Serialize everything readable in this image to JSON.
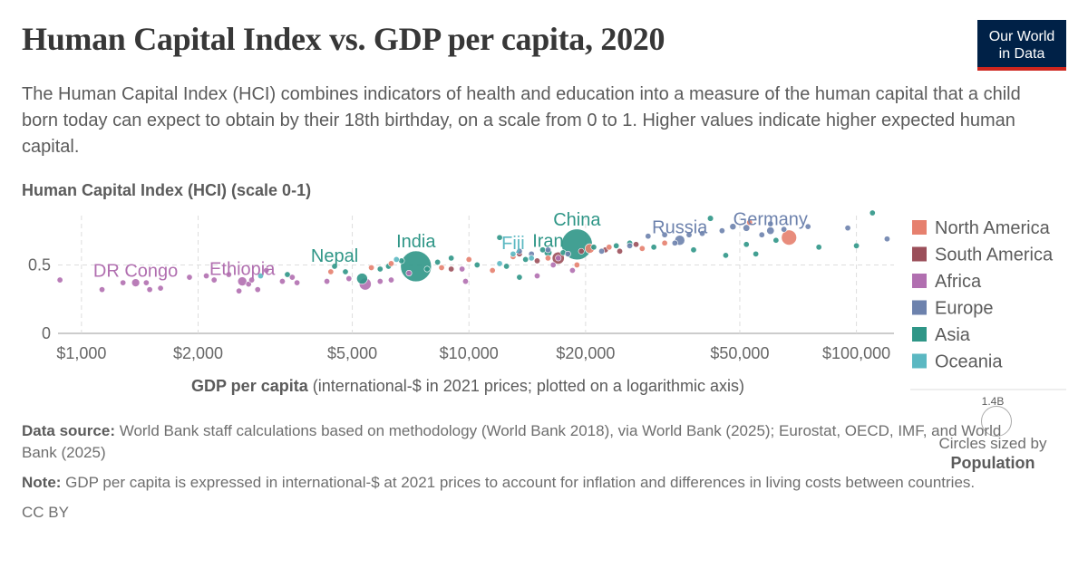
{
  "title": "Human Capital Index vs. GDP per capita, 2020",
  "subtitle": "The Human Capital Index (HCI) combines indicators of health and education into a measure of the human capital that a child born today can expect to obtain by their 18th birthday, on a scale from 0 to 1. Higher values indicate higher expected human capital.",
  "logo": {
    "line1": "Our World",
    "line2": "in Data"
  },
  "chart_data": {
    "type": "scatter",
    "title": "Human Capital Index vs. GDP per capita, 2020",
    "ylabel": "Human Capital Index (HCI) (scale 0-1)",
    "xlabel_bold": "GDP per capita",
    "xlabel_rest": " (international-$ in 2021 prices; plotted on a logarithmic axis)",
    "x_scale": "log",
    "xlim": [
      870,
      125000
    ],
    "ylim": [
      0,
      0.9
    ],
    "x_ticks": [
      {
        "v": 1000,
        "label": "$1,000"
      },
      {
        "v": 2000,
        "label": "$2,000"
      },
      {
        "v": 5000,
        "label": "$5,000"
      },
      {
        "v": 10000,
        "label": "$10,000"
      },
      {
        "v": 20000,
        "label": "$20,000"
      },
      {
        "v": 50000,
        "label": "$50,000"
      },
      {
        "v": 100000,
        "label": "$100,000"
      }
    ],
    "y_ticks": [
      {
        "v": 0,
        "label": "0"
      },
      {
        "v": 0.5,
        "label": "0.5"
      }
    ],
    "grid": true,
    "legend_position": "right",
    "size_legend": {
      "value": "1.4B",
      "caption": "Circles sized by",
      "variable": "Population"
    },
    "regions": [
      {
        "name": "North America",
        "color": "#e6806e"
      },
      {
        "name": "South America",
        "color": "#9b4f5a"
      },
      {
        "name": "Africa",
        "color": "#b16fb0"
      },
      {
        "name": "Europe",
        "color": "#6d82ad"
      },
      {
        "name": "Asia",
        "color": "#2f9687"
      },
      {
        "name": "Oceania",
        "color": "#5bb8c2"
      }
    ],
    "labeled_points": [
      {
        "label": "DR Congo",
        "region": "Africa",
        "x": 1380,
        "y": 0.37,
        "pop": 92
      },
      {
        "label": "Ethiopia",
        "region": "Africa",
        "x": 2600,
        "y": 0.38,
        "pop": 118
      },
      {
        "label": "Nepal",
        "region": "Asia",
        "x": 4500,
        "y": 0.49,
        "pop": 30
      },
      {
        "label": "India",
        "region": "Asia",
        "x": 7300,
        "y": 0.49,
        "pop": 1390
      },
      {
        "label": "Fiji",
        "region": "Oceania",
        "x": 13000,
        "y": 0.58,
        "pop": 1
      },
      {
        "label": "Iran",
        "region": "Asia",
        "x": 16000,
        "y": 0.59,
        "pop": 87
      },
      {
        "label": "China",
        "region": "Asia",
        "x": 19000,
        "y": 0.65,
        "pop": 1410
      },
      {
        "label": "Russia",
        "region": "Europe",
        "x": 35000,
        "y": 0.68,
        "pop": 145
      },
      {
        "label": "Germany",
        "region": "Europe",
        "x": 60000,
        "y": 0.75,
        "pop": 83
      }
    ],
    "points": [
      {
        "region": "Africa",
        "x": 880,
        "y": 0.39,
        "pop": 20
      },
      {
        "region": "Africa",
        "x": 1130,
        "y": 0.32,
        "pop": 12
      },
      {
        "region": "Africa",
        "x": 1280,
        "y": 0.37,
        "pop": 20
      },
      {
        "region": "Africa",
        "x": 1500,
        "y": 0.32,
        "pop": 10
      },
      {
        "region": "Africa",
        "x": 1600,
        "y": 0.33,
        "pop": 12
      },
      {
        "region": "Africa",
        "x": 1470,
        "y": 0.37,
        "pop": 10
      },
      {
        "region": "Africa",
        "x": 1900,
        "y": 0.41,
        "pop": 8
      },
      {
        "region": "Africa",
        "x": 2100,
        "y": 0.42,
        "pop": 14
      },
      {
        "region": "Africa",
        "x": 2200,
        "y": 0.39,
        "pop": 20
      },
      {
        "region": "Africa",
        "x": 2400,
        "y": 0.43,
        "pop": 12
      },
      {
        "region": "Africa",
        "x": 2550,
        "y": 0.31,
        "pop": 10
      },
      {
        "region": "Africa",
        "x": 2700,
        "y": 0.36,
        "pop": 14
      },
      {
        "region": "Africa",
        "x": 2850,
        "y": 0.32,
        "pop": 10
      },
      {
        "region": "Africa",
        "x": 2750,
        "y": 0.39,
        "pop": 12
      },
      {
        "region": "Africa",
        "x": 3000,
        "y": 0.46,
        "pop": 10
      },
      {
        "region": "Africa",
        "x": 3300,
        "y": 0.38,
        "pop": 16
      },
      {
        "region": "Africa",
        "x": 3600,
        "y": 0.37,
        "pop": 14
      },
      {
        "region": "Africa",
        "x": 3500,
        "y": 0.41,
        "pop": 10
      },
      {
        "region": "Africa",
        "x": 4300,
        "y": 0.38,
        "pop": 14
      },
      {
        "region": "Africa",
        "x": 4900,
        "y": 0.4,
        "pop": 10
      },
      {
        "region": "Africa",
        "x": 5400,
        "y": 0.36,
        "pop": 206
      },
      {
        "region": "Africa",
        "x": 5900,
        "y": 0.38,
        "pop": 16
      },
      {
        "region": "Africa",
        "x": 6300,
        "y": 0.39,
        "pop": 14
      },
      {
        "region": "Africa",
        "x": 7000,
        "y": 0.44,
        "pop": 10
      },
      {
        "region": "Africa",
        "x": 9800,
        "y": 0.38,
        "pop": 12
      },
      {
        "region": "Africa",
        "x": 9600,
        "y": 0.47,
        "pop": 14
      },
      {
        "region": "Africa",
        "x": 15000,
        "y": 0.42,
        "pop": 8
      },
      {
        "region": "Africa",
        "x": 17000,
        "y": 0.55,
        "pop": 10
      },
      {
        "region": "Africa",
        "x": 16500,
        "y": 0.5,
        "pop": 20
      },
      {
        "region": "Africa",
        "x": 18500,
        "y": 0.46,
        "pop": 12
      },
      {
        "region": "Asia",
        "x": 3400,
        "y": 0.43,
        "pop": 10
      },
      {
        "region": "Asia",
        "x": 4800,
        "y": 0.45,
        "pop": 30
      },
      {
        "region": "Asia",
        "x": 5300,
        "y": 0.4,
        "pop": 170
      },
      {
        "region": "Asia",
        "x": 5900,
        "y": 0.47,
        "pop": 12
      },
      {
        "region": "Asia",
        "x": 6200,
        "y": 0.49,
        "pop": 16
      },
      {
        "region": "Asia",
        "x": 6700,
        "y": 0.53,
        "pop": 10
      },
      {
        "region": "Asia",
        "x": 7800,
        "y": 0.47,
        "pop": 20
      },
      {
        "region": "Asia",
        "x": 8300,
        "y": 0.52,
        "pop": 20
      },
      {
        "region": "Asia",
        "x": 9000,
        "y": 0.55,
        "pop": 16
      },
      {
        "region": "Asia",
        "x": 10500,
        "y": 0.5,
        "pop": 10
      },
      {
        "region": "Asia",
        "x": 12500,
        "y": 0.49,
        "pop": 40
      },
      {
        "region": "Asia",
        "x": 12000,
        "y": 0.7,
        "pop": 10
      },
      {
        "region": "Asia",
        "x": 13500,
        "y": 0.41,
        "pop": 10
      },
      {
        "region": "Asia",
        "x": 14000,
        "y": 0.54,
        "pop": 36
      },
      {
        "region": "Asia",
        "x": 15500,
        "y": 0.61,
        "pop": 20
      },
      {
        "region": "Asia",
        "x": 17500,
        "y": 0.59,
        "pop": 30
      },
      {
        "region": "Asia",
        "x": 21000,
        "y": 0.63,
        "pop": 26
      },
      {
        "region": "Asia",
        "x": 24000,
        "y": 0.64,
        "pop": 20
      },
      {
        "region": "Asia",
        "x": 26000,
        "y": 0.66,
        "pop": 22
      },
      {
        "region": "Asia",
        "x": 30000,
        "y": 0.63,
        "pop": 8
      },
      {
        "region": "Asia",
        "x": 38000,
        "y": 0.61,
        "pop": 10
      },
      {
        "region": "Asia",
        "x": 42000,
        "y": 0.84,
        "pop": 52
      },
      {
        "region": "Asia",
        "x": 46000,
        "y": 0.57,
        "pop": 10
      },
      {
        "region": "Asia",
        "x": 52000,
        "y": 0.65,
        "pop": 12
      },
      {
        "region": "Asia",
        "x": 55000,
        "y": 0.58,
        "pop": 10
      },
      {
        "region": "Asia",
        "x": 62000,
        "y": 0.68,
        "pop": 16
      },
      {
        "region": "Asia",
        "x": 80000,
        "y": 0.63,
        "pop": 12
      },
      {
        "region": "Asia",
        "x": 100000,
        "y": 0.64,
        "pop": 10
      },
      {
        "region": "Asia",
        "x": 110000,
        "y": 0.88,
        "pop": 10
      },
      {
        "region": "Oceania",
        "x": 2900,
        "y": 0.42,
        "pop": 10
      },
      {
        "region": "Oceania",
        "x": 6500,
        "y": 0.54,
        "pop": 8
      },
      {
        "region": "Oceania",
        "x": 12000,
        "y": 0.51,
        "pop": 8
      },
      {
        "region": "Oceania",
        "x": 14500,
        "y": 0.55,
        "pop": 6
      },
      {
        "region": "South America",
        "x": 9000,
        "y": 0.47,
        "pop": 10
      },
      {
        "region": "South America",
        "x": 13500,
        "y": 0.58,
        "pop": 20
      },
      {
        "region": "South America",
        "x": 15000,
        "y": 0.53,
        "pop": 30
      },
      {
        "region": "South America",
        "x": 17000,
        "y": 0.55,
        "pop": 212
      },
      {
        "region": "South America",
        "x": 19500,
        "y": 0.6,
        "pop": 18
      },
      {
        "region": "South America",
        "x": 22500,
        "y": 0.61,
        "pop": 45
      },
      {
        "region": "South America",
        "x": 24500,
        "y": 0.6,
        "pop": 12
      },
      {
        "region": "South America",
        "x": 27000,
        "y": 0.65,
        "pop": 20
      },
      {
        "region": "North America",
        "x": 4400,
        "y": 0.45,
        "pop": 10
      },
      {
        "region": "North America",
        "x": 5600,
        "y": 0.48,
        "pop": 12
      },
      {
        "region": "North America",
        "x": 6300,
        "y": 0.51,
        "pop": 16
      },
      {
        "region": "North America",
        "x": 8500,
        "y": 0.48,
        "pop": 18
      },
      {
        "region": "North America",
        "x": 10000,
        "y": 0.54,
        "pop": 10
      },
      {
        "region": "North America",
        "x": 11500,
        "y": 0.46,
        "pop": 10
      },
      {
        "region": "North America",
        "x": 13000,
        "y": 0.56,
        "pop": 10
      },
      {
        "region": "North America",
        "x": 16000,
        "y": 0.55,
        "pop": 12
      },
      {
        "region": "North America",
        "x": 19000,
        "y": 0.5,
        "pop": 10
      },
      {
        "region": "North America",
        "x": 20500,
        "y": 0.62,
        "pop": 128
      },
      {
        "region": "North America",
        "x": 23000,
        "y": 0.63,
        "pop": 10
      },
      {
        "region": "North America",
        "x": 28000,
        "y": 0.62,
        "pop": 8
      },
      {
        "region": "North America",
        "x": 32000,
        "y": 0.66,
        "pop": 6
      },
      {
        "region": "North America",
        "x": 53000,
        "y": 0.81,
        "pop": 38
      },
      {
        "region": "North America",
        "x": 67000,
        "y": 0.7,
        "pop": 331
      },
      {
        "region": "Europe",
        "x": 13500,
        "y": 0.6,
        "pop": 20
      },
      {
        "region": "Europe",
        "x": 14500,
        "y": 0.58,
        "pop": 10
      },
      {
        "region": "Europe",
        "x": 16000,
        "y": 0.61,
        "pop": 12
      },
      {
        "region": "Europe",
        "x": 18000,
        "y": 0.58,
        "pop": 12
      },
      {
        "region": "Europe",
        "x": 22000,
        "y": 0.6,
        "pop": 10
      },
      {
        "region": "Europe",
        "x": 26000,
        "y": 0.64,
        "pop": 10
      },
      {
        "region": "Europe",
        "x": 29000,
        "y": 0.71,
        "pop": 10
      },
      {
        "region": "Europe",
        "x": 32000,
        "y": 0.72,
        "pop": 12
      },
      {
        "region": "Europe",
        "x": 34000,
        "y": 0.66,
        "pop": 12
      },
      {
        "region": "Europe",
        "x": 37000,
        "y": 0.72,
        "pop": 10
      },
      {
        "region": "Europe",
        "x": 40000,
        "y": 0.73,
        "pop": 20
      },
      {
        "region": "Europe",
        "x": 45000,
        "y": 0.75,
        "pop": 47
      },
      {
        "region": "Europe",
        "x": 48000,
        "y": 0.78,
        "pop": 60
      },
      {
        "region": "Europe",
        "x": 52000,
        "y": 0.77,
        "pop": 67
      },
      {
        "region": "Europe",
        "x": 57000,
        "y": 0.72,
        "pop": 10
      },
      {
        "region": "Europe",
        "x": 60000,
        "y": 0.8,
        "pop": 10
      },
      {
        "region": "Europe",
        "x": 65000,
        "y": 0.76,
        "pop": 10
      },
      {
        "region": "Europe",
        "x": 75000,
        "y": 0.78,
        "pop": 5
      },
      {
        "region": "Europe",
        "x": 95000,
        "y": 0.77,
        "pop": 10
      },
      {
        "region": "Europe",
        "x": 120000,
        "y": 0.69,
        "pop": 6
      }
    ]
  },
  "footer": {
    "source_label": "Data source:",
    "source_text": " World Bank staff calculations based on methodology (World Bank 2018), via World Bank (2025); Eurostat, OECD, IMF, and World Bank (2025)",
    "note_label": "Note:",
    "note_text": " GDP per capita is expressed in international-$ at 2021 prices to account for inflation and differences in living costs between countries.",
    "license": "CC BY"
  }
}
